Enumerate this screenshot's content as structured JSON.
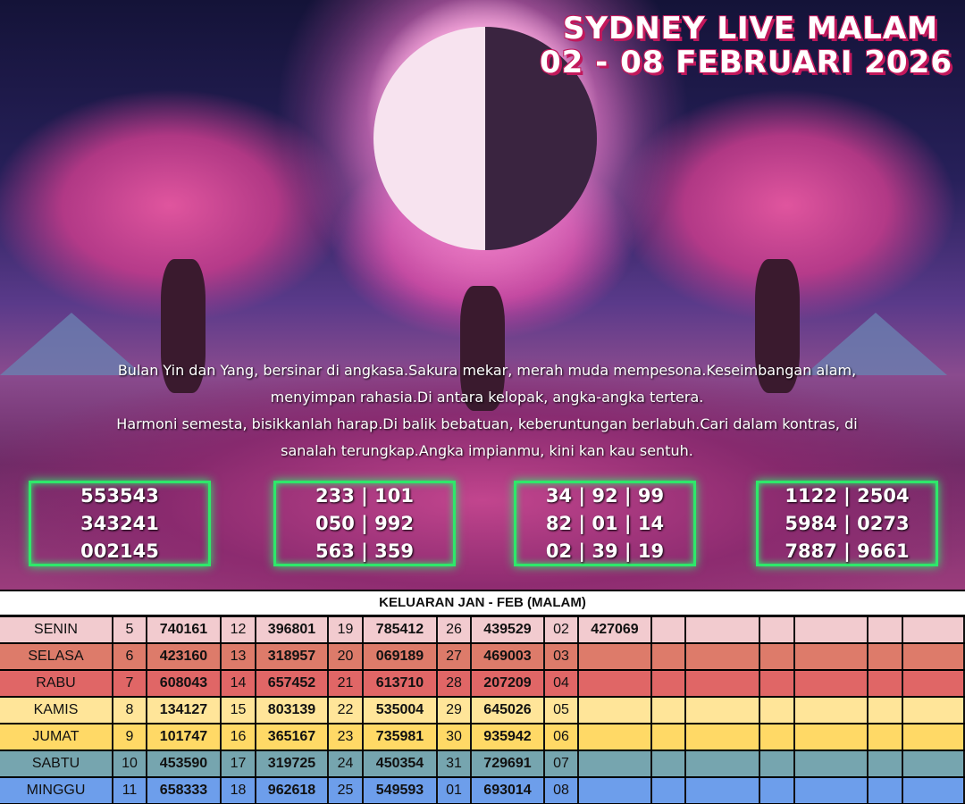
{
  "title": {
    "line1": "SYDNEY LIVE MALAM",
    "line2": "02 - 08 FEBRUARI 2026"
  },
  "poem": [
    "Bulan Yin dan Yang, bersinar di angkasa.Sakura mekar, merah muda mempesona.Keseimbangan alam,",
    "menyimpan rahasia.Di antara kelopak, angka-angka tertera.",
    "Harmoni semesta, bisikkanlah harap.Di balik bebatuan, keberuntungan berlabuh.Cari dalam kontras, di",
    "sanalah terungkap.Angka impianmu, kini kan kau sentuh."
  ],
  "prediction_boxes": [
    [
      "553543",
      "343241",
      "002145"
    ],
    [
      "233 | 101",
      "050 | 992",
      "563 | 359"
    ],
    [
      "34 | 92 | 99",
      "82 | 01 | 14",
      "02 | 39 | 19"
    ],
    [
      "1122 | 2504",
      "5984 | 0273",
      "7887 | 9661"
    ]
  ],
  "table": {
    "title": "KELUARAN JAN - FEB (MALAM)",
    "rows": [
      {
        "day": "SENIN",
        "color": "#f2cbcf",
        "cells": [
          "5",
          "740161",
          "12",
          "396801",
          "19",
          "785412",
          "26",
          "439529",
          "02",
          "427069",
          "",
          "",
          "",
          "",
          "",
          ""
        ]
      },
      {
        "day": "SELASA",
        "color": "#dd7b6a",
        "cells": [
          "6",
          "423160",
          "13",
          "318957",
          "20",
          "069189",
          "27",
          "469003",
          "03",
          "",
          "",
          "",
          "",
          "",
          "",
          ""
        ]
      },
      {
        "day": "RABU",
        "color": "#e06666",
        "cells": [
          "7",
          "608043",
          "14",
          "657452",
          "21",
          "613710",
          "28",
          "207209",
          "04",
          "",
          "",
          "",
          "",
          "",
          "",
          ""
        ]
      },
      {
        "day": "KAMIS",
        "color": "#ffe599",
        "cells": [
          "8",
          "134127",
          "15",
          "803139",
          "22",
          "535004",
          "29",
          "645026",
          "05",
          "",
          "",
          "",
          "",
          "",
          "",
          ""
        ]
      },
      {
        "day": "JUMAT",
        "color": "#ffd966",
        "cells": [
          "9",
          "101747",
          "16",
          "365167",
          "23",
          "735981",
          "30",
          "935942",
          "06",
          "",
          "",
          "",
          "",
          "",
          "",
          ""
        ]
      },
      {
        "day": "SABTU",
        "color": "#76a5af",
        "cells": [
          "10",
          "453590",
          "17",
          "319725",
          "24",
          "450354",
          "31",
          "729691",
          "07",
          "",
          "",
          "",
          "",
          "",
          "",
          ""
        ]
      },
      {
        "day": "MINGGU",
        "color": "#6d9eeb",
        "cells": [
          "11",
          "658333",
          "18",
          "962618",
          "25",
          "549593",
          "01",
          "693014",
          "08",
          "",
          "",
          "",
          "",
          "",
          "",
          ""
        ]
      }
    ]
  },
  "colors": {
    "box_border": "#2ee86a",
    "title_shadow": "#c2185b"
  }
}
